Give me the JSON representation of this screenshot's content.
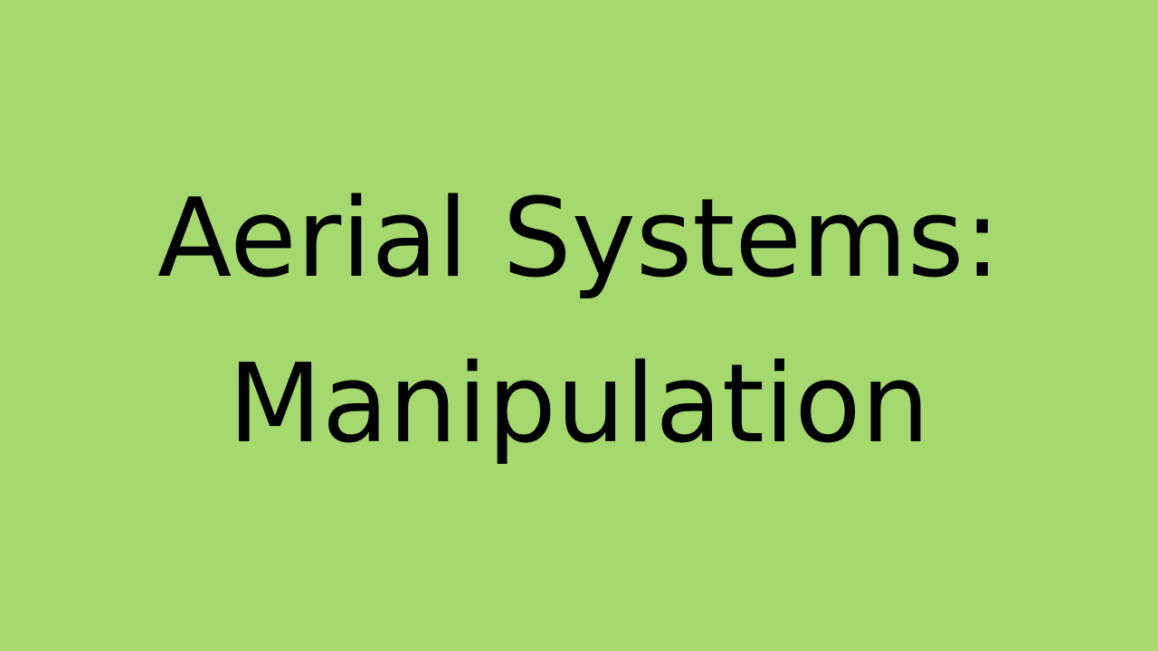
{
  "slide": {
    "title_line_1": "Aerial Systems:",
    "title_line_2": "Manipulation",
    "background_color": "#a5d86e",
    "text_color": "#000000"
  }
}
